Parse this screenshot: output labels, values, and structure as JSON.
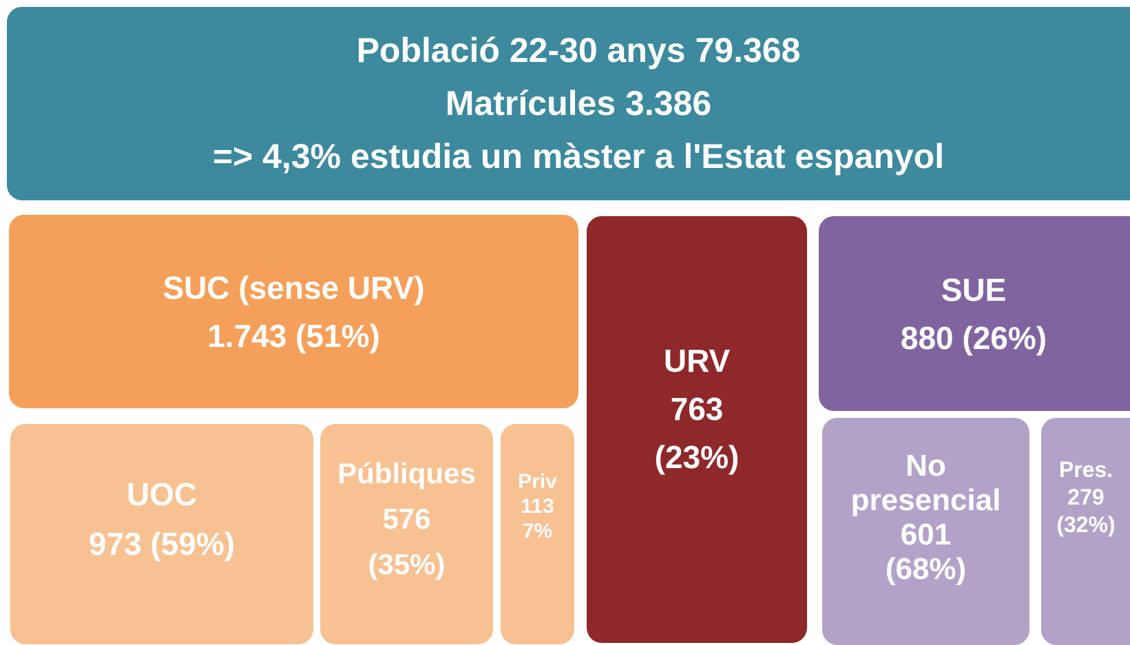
{
  "header": {
    "lines": [
      "Població 22-30 anys 79.368",
      "Matrícules 3.386",
      "=> 4,3% estudia un màster a l'Estat espanyol"
    ]
  },
  "boxes": [
    {
      "lines": [
        "SUC (sense URV)",
        "1.743 (51%)"
      ]
    },
    {
      "lines": [
        "URV",
        "763",
        "(23%)"
      ]
    },
    {
      "lines": [
        "SUE",
        "880 (26%)"
      ]
    },
    {
      "lines": [
        "UOC",
        "973 (59%)"
      ]
    },
    {
      "lines": [
        "Públiques",
        "576",
        "(35%)"
      ]
    },
    {
      "lines": [
        "Priv",
        "113",
        "7%"
      ]
    },
    {
      "lines": [
        "No",
        "presencial",
        "601",
        "(68%)"
      ]
    },
    {
      "lines": [
        "Pres.",
        "279",
        "(32%)"
      ]
    }
  ]
}
